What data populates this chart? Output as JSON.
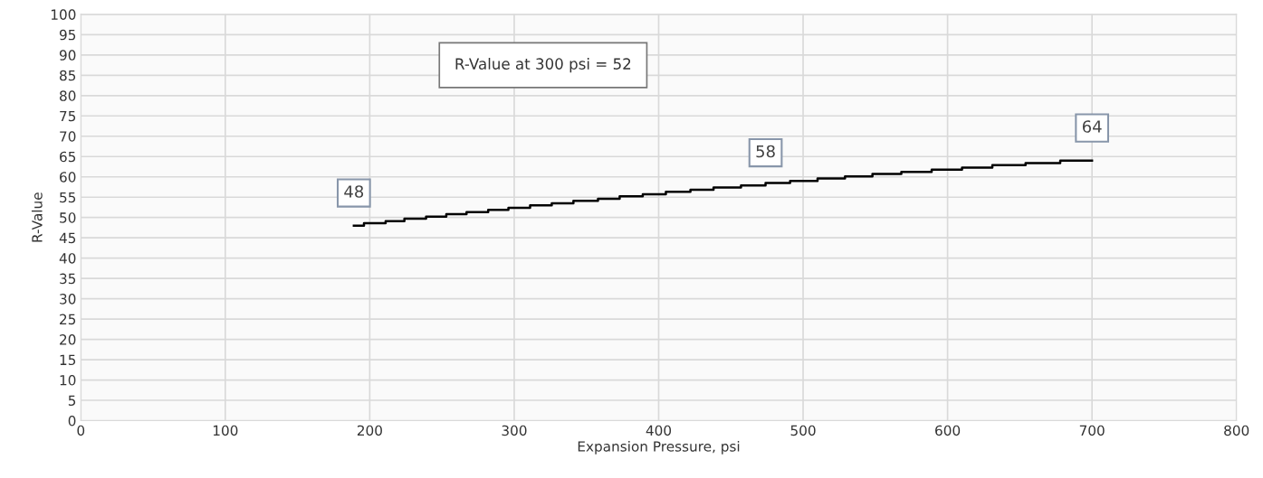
{
  "chart_data": {
    "type": "step",
    "xlabel": "Expansion Pressure, psi",
    "ylabel": "R-Value",
    "x": [
      189,
      196,
      211,
      224,
      239,
      253,
      267,
      282,
      296,
      311,
      326,
      341,
      358,
      373,
      389,
      405,
      422,
      438,
      457,
      474,
      491,
      510,
      529,
      548,
      568,
      589,
      610,
      631,
      654,
      678,
      700
    ],
    "series": [
      {
        "color": "#000000",
        "values": [
          48.0,
          48.6,
          49.1,
          49.7,
          50.2,
          50.8,
          51.3,
          51.9,
          52.4,
          53.0,
          53.5,
          54.1,
          54.6,
          55.2,
          55.7,
          56.3,
          56.8,
          57.4,
          57.9,
          58.5,
          59.0,
          59.6,
          60.1,
          60.7,
          61.2,
          61.8,
          62.3,
          62.9,
          63.4,
          64.0,
          64.0
        ]
      }
    ],
    "annotations": [
      "R-Value at 300 psi = 52",
      {
        "text": "48",
        "x": 189,
        "y": 48
      },
      {
        "text": "58",
        "x": 474,
        "y": 57.9
      },
      {
        "text": "64",
        "x": 700,
        "y": 64
      }
    ],
    "xlim": [
      0,
      800
    ],
    "xticks": [
      0,
      100,
      200,
      300,
      400,
      500,
      600,
      700,
      800
    ],
    "ylim": [
      0,
      100
    ],
    "yticks": [
      0,
      5,
      10,
      15,
      20,
      25,
      30,
      35,
      40,
      45,
      50,
      55,
      60,
      65,
      70,
      75,
      80,
      85,
      90,
      95,
      100
    ],
    "grid": true,
    "legend": false,
    "line_style": "solid",
    "marker": "none"
  }
}
